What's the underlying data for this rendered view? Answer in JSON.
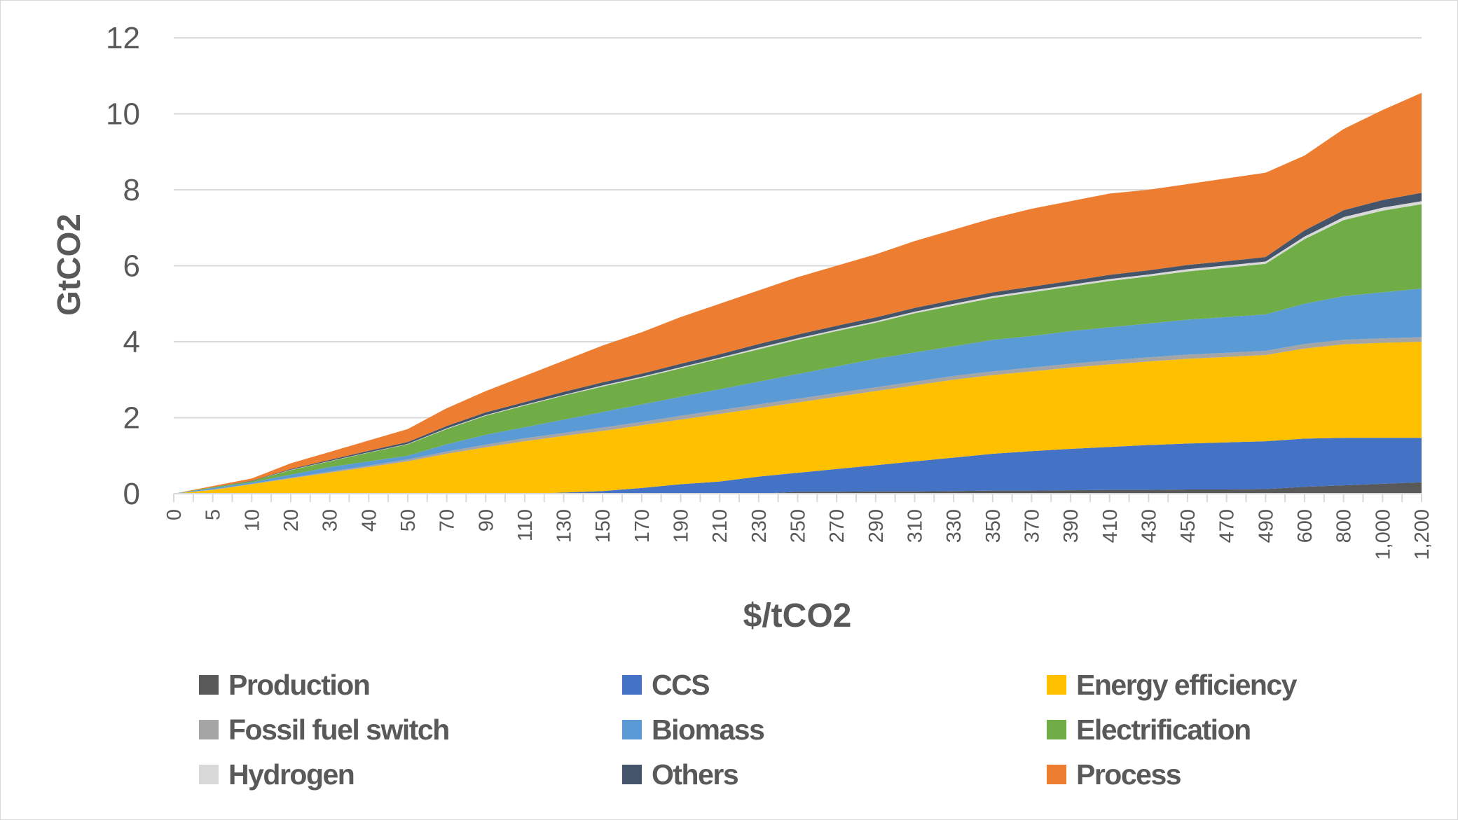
{
  "chart_data": {
    "type": "area",
    "stacked": true,
    "xlabel": "$/tCO2",
    "ylabel": "GtCO2",
    "ylim": [
      0,
      12
    ],
    "yticks": [
      "0",
      "2",
      "4",
      "6",
      "8",
      "10",
      "12"
    ],
    "grid": true,
    "legend_position": "bottom",
    "categories": [
      "0",
      "5",
      "10",
      "20",
      "30",
      "40",
      "50",
      "70",
      "90",
      "110",
      "130",
      "150",
      "170",
      "190",
      "210",
      "230",
      "250",
      "270",
      "290",
      "310",
      "330",
      "350",
      "370",
      "390",
      "410",
      "430",
      "450",
      "470",
      "490",
      "600",
      "800",
      "1,000",
      "1,200"
    ],
    "series": [
      {
        "name": "Production",
        "color": "#595959",
        "values": [
          0,
          0,
          0,
          0,
          0,
          0,
          0,
          0,
          0,
          0,
          0,
          0,
          0,
          0,
          0,
          0,
          0.05,
          0.05,
          0.06,
          0.06,
          0.07,
          0.08,
          0.08,
          0.09,
          0.1,
          0.1,
          0.11,
          0.11,
          0.12,
          0.18,
          0.22,
          0.26,
          0.3
        ]
      },
      {
        "name": "CCS",
        "color": "#4472C4",
        "values": [
          0,
          0,
          0,
          0,
          0,
          0,
          0,
          0,
          0,
          0,
          0.03,
          0.07,
          0.15,
          0.25,
          0.32,
          0.45,
          0.5,
          0.6,
          0.69,
          0.79,
          0.88,
          0.97,
          1.04,
          1.09,
          1.13,
          1.18,
          1.21,
          1.24,
          1.26,
          1.27,
          1.25,
          1.21,
          1.17
        ]
      },
      {
        "name": "Energy efficiency",
        "color": "#FFC000",
        "values": [
          0,
          0.1,
          0.25,
          0.4,
          0.55,
          0.7,
          0.85,
          1.05,
          1.22,
          1.38,
          1.49,
          1.58,
          1.65,
          1.7,
          1.78,
          1.8,
          1.85,
          1.9,
          1.95,
          2.0,
          2.05,
          2.07,
          2.1,
          2.14,
          2.17,
          2.2,
          2.23,
          2.25,
          2.27,
          2.37,
          2.46,
          2.5,
          2.53
        ]
      },
      {
        "name": "Fossil fuel switch",
        "color": "#A5A5A5",
        "values": [
          0,
          0.01,
          0.01,
          0.02,
          0.03,
          0.04,
          0.05,
          0.06,
          0.07,
          0.08,
          0.08,
          0.09,
          0.09,
          0.1,
          0.1,
          0.1,
          0.1,
          0.1,
          0.1,
          0.1,
          0.1,
          0.1,
          0.1,
          0.1,
          0.11,
          0.11,
          0.11,
          0.11,
          0.11,
          0.12,
          0.12,
          0.12,
          0.12
        ]
      },
      {
        "name": "Biomass",
        "color": "#5B9BD5",
        "values": [
          0,
          0.04,
          0.04,
          0.08,
          0.12,
          0.11,
          0.1,
          0.19,
          0.26,
          0.29,
          0.35,
          0.41,
          0.46,
          0.5,
          0.55,
          0.6,
          0.65,
          0.7,
          0.75,
          0.77,
          0.78,
          0.83,
          0.83,
          0.86,
          0.87,
          0.89,
          0.92,
          0.94,
          0.96,
          1.06,
          1.15,
          1.21,
          1.28
        ]
      },
      {
        "name": "Electrification",
        "color": "#70AD47",
        "values": [
          0,
          0.02,
          0.03,
          0.12,
          0.15,
          0.23,
          0.3,
          0.4,
          0.5,
          0.57,
          0.63,
          0.67,
          0.7,
          0.75,
          0.8,
          0.85,
          0.9,
          0.93,
          0.95,
          1.03,
          1.07,
          1.1,
          1.15,
          1.17,
          1.22,
          1.24,
          1.27,
          1.3,
          1.33,
          1.7,
          2.0,
          2.15,
          2.22
        ]
      },
      {
        "name": "Hydrogen",
        "color": "#D9D9D9",
        "values": [
          0,
          0,
          0,
          0.01,
          0.01,
          0.01,
          0.01,
          0.02,
          0.02,
          0.02,
          0.02,
          0.03,
          0.03,
          0.03,
          0.03,
          0.04,
          0.04,
          0.04,
          0.04,
          0.04,
          0.05,
          0.05,
          0.05,
          0.05,
          0.05,
          0.05,
          0.06,
          0.06,
          0.06,
          0.07,
          0.08,
          0.08,
          0.08
        ]
      },
      {
        "name": "Others",
        "color": "#44546A",
        "values": [
          0,
          0,
          0.01,
          0.02,
          0.03,
          0.04,
          0.05,
          0.06,
          0.07,
          0.07,
          0.08,
          0.08,
          0.08,
          0.09,
          0.09,
          0.1,
          0.1,
          0.1,
          0.1,
          0.1,
          0.1,
          0.1,
          0.1,
          0.1,
          0.11,
          0.11,
          0.11,
          0.11,
          0.12,
          0.16,
          0.18,
          0.2,
          0.22
        ]
      },
      {
        "name": "Process",
        "color": "#ED7D31",
        "values": [
          0,
          0.03,
          0.06,
          0.15,
          0.21,
          0.27,
          0.34,
          0.47,
          0.56,
          0.69,
          0.82,
          0.97,
          1.09,
          1.23,
          1.33,
          1.41,
          1.51,
          1.58,
          1.66,
          1.76,
          1.85,
          1.95,
          2.05,
          2.1,
          2.14,
          2.12,
          2.13,
          2.18,
          2.22,
          1.97,
          2.14,
          2.37,
          2.63
        ]
      }
    ]
  }
}
